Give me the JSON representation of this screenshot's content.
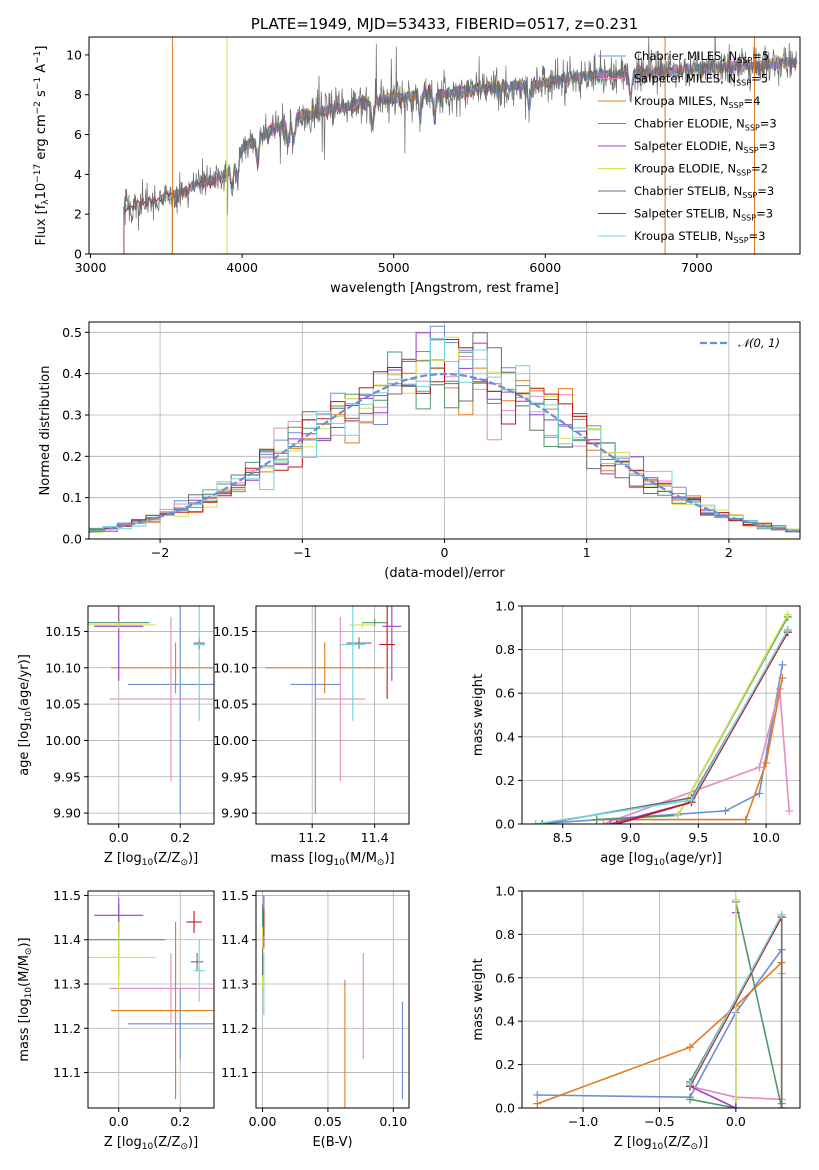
{
  "title": "PLATE=1949, MJD=53433, FIBERID=0517, z=0.231",
  "colors": {
    "chabrier_miles": "#6a8fd8",
    "salpeter_miles": "#e68bbf",
    "kroupa_miles": "#e07b20",
    "chabrier_elodie": "#4f9a6b",
    "salpeter_elodie": "#9b3fc9",
    "kroupa_elodie": "#d4e24a",
    "chabrier_stelib": "#6d6d6d",
    "salpeter_stelib": "#c01818",
    "kroupa_stelib": "#6fd3dd",
    "gauss": "#6a8fd8"
  },
  "chart_data": [
    {
      "id": "spectrum",
      "type": "line",
      "title": "PLATE=1949, MJD=53433, FIBERID=0517, z=0.231",
      "xlabel": "wavelength [Angstrom, rest frame]",
      "ylabel_main": "Flux [f",
      "ylabel_sub": "λ",
      "ylabel_rest": "10",
      "ylabel_exp1": "−17",
      "ylabel_mid": " erg cm",
      "ylabel_exp2": "−2",
      "ylabel_s": " s",
      "ylabel_exp3": "−1",
      "ylabel_end": " A",
      "ylabel_exp4": "−1",
      "ylabel_close": "]",
      "xlim": [
        2990,
        7680
      ],
      "ylim": [
        0,
        10.9
      ],
      "xticks": [
        3000,
        4000,
        5000,
        6000,
        7000
      ],
      "yticks": [
        0,
        2,
        4,
        6,
        8,
        10
      ],
      "grid": false,
      "legend_position": "top-right",
      "legend": [
        {
          "key": "chabrier_miles",
          "label": "Chabrier MILES, N",
          "sub": "SSP",
          "suffix": "=5"
        },
        {
          "key": "salpeter_miles",
          "label": "Salpeter MILES, N",
          "sub": "SSP",
          "suffix": "=5"
        },
        {
          "key": "kroupa_miles",
          "label": "Kroupa MILES, N",
          "sub": "SSP",
          "suffix": "=4"
        },
        {
          "key": "chabrier_elodie",
          "label": "Chabrier ELODIE, N",
          "sub": "SSP",
          "suffix": "=3"
        },
        {
          "key": "salpeter_elodie",
          "label": "Salpeter ELODIE, N",
          "sub": "SSP",
          "suffix": "=3"
        },
        {
          "key": "kroupa_elodie",
          "label": "Kroupa ELODIE, N",
          "sub": "SSP",
          "suffix": "=2"
        },
        {
          "key": "chabrier_stelib",
          "label": "Chabrier STELIB, N",
          "sub": "SSP",
          "suffix": "=3"
        },
        {
          "key": "salpeter_stelib",
          "label": "Salpeter STELIB, N",
          "sub": "SSP",
          "suffix": "=3"
        },
        {
          "key": "kroupa_stelib",
          "label": "Kroupa STELIB, N",
          "sub": "SSP",
          "suffix": "=3"
        }
      ],
      "continuum": {
        "x": [
          3220,
          3280,
          3400,
          3500,
          3600,
          3700,
          3800,
          3900,
          3950,
          4000,
          4100,
          4200,
          4300,
          4400,
          4500,
          4600,
          4700,
          4800,
          4900,
          5000,
          5200,
          5400,
          5600,
          5800,
          6000,
          6200,
          6400,
          6600,
          6800,
          7000,
          7200,
          7400,
          7660
        ],
        "y": [
          2.2,
          2.4,
          2.6,
          2.9,
          3.1,
          3.5,
          3.7,
          4.0,
          4.6,
          5.3,
          5.8,
          6.2,
          6.7,
          7.0,
          7.1,
          7.3,
          7.4,
          7.6,
          7.7,
          7.9,
          8.0,
          8.1,
          8.3,
          8.4,
          8.6,
          8.9,
          9.0,
          9.1,
          9.2,
          9.3,
          9.4,
          9.5,
          9.6
        ]
      },
      "model_start": {
        "chabrier_miles": 3540,
        "salpeter_miles": 3540,
        "kroupa_miles": 3540,
        "chabrier_elodie": 3900,
        "salpeter_elodie": 3900,
        "kroupa_elodie": 3900,
        "chabrier_stelib": 3220,
        "salpeter_stelib": 3220,
        "kroupa_stelib": 3220
      }
    },
    {
      "id": "residuals",
      "type": "step",
      "xlabel": "(data-model)/error",
      "ylabel": "Normed distribution",
      "xlim": [
        -2.5,
        2.5
      ],
      "ylim": [
        0,
        0.525
      ],
      "xticks": [
        -2,
        -1,
        0,
        1,
        2
      ],
      "yticks": [
        0.0,
        0.1,
        0.2,
        0.3,
        0.4,
        0.5
      ],
      "grid": true,
      "legend_position": "top-right",
      "gauss_label": "𝒩(0, 1)",
      "bin_width": 0.1
    },
    {
      "id": "age_vs_Z",
      "type": "scatter",
      "xlabel": "Z [log",
      "xlabel_sub": "10",
      "xlabel_rest": "(Z/Z",
      "xlabel_sub2": "⊙",
      "xlabel_end": ")]",
      "ylabel": "age  [log",
      "ylabel_sub": "10",
      "ylabel_rest": "(age/yr)]",
      "xlim": [
        -0.1,
        0.31
      ],
      "ylim": [
        9.885,
        10.185
      ],
      "xticks": [
        0.0,
        0.2
      ],
      "yticks": [
        9.9,
        9.95,
        10.0,
        10.05,
        10.1,
        10.15
      ],
      "points": [
        {
          "key": "chabrier_miles",
          "x": 0.2,
          "xerr": 0.17,
          "y": 10.077,
          "yerr": 0.178
        },
        {
          "key": "salpeter_miles",
          "x": 0.17,
          "xerr": 0.2,
          "y": 10.057,
          "yerr": 0.113
        },
        {
          "key": "kroupa_miles",
          "x": 0.185,
          "xerr": 0.21,
          "y": 10.1,
          "yerr": 0.035
        },
        {
          "key": "chabrier_elodie",
          "x": 0.0,
          "xerr": 0.1,
          "y": 10.162,
          "yerr": 0.005
        },
        {
          "key": "salpeter_elodie",
          "x": 0.0,
          "xerr": 0.08,
          "y": 10.157,
          "yerr": 0.075
        },
        {
          "key": "kroupa_elodie",
          "x": 0.0,
          "xerr": 0.12,
          "y": 10.159,
          "yerr": 0.005
        },
        {
          "key": "chabrier_stelib",
          "x": 0.262,
          "xerr": 0.018,
          "y": 10.134,
          "yerr": 0.008
        },
        {
          "key": "salpeter_stelib",
          "x": 0.262,
          "xerr": 0.018,
          "y": 10.132,
          "yerr": 0.006
        },
        {
          "key": "kroupa_stelib",
          "x": 0.262,
          "xerr": 0.018,
          "y": 10.132,
          "yerr": 0.105
        }
      ]
    },
    {
      "id": "age_vs_mass",
      "type": "scatter",
      "xlabel": "mass [log",
      "xlabel_sub": "10",
      "xlabel_rest": "(M/M",
      "xlabel_sub2": "⊙",
      "xlabel_end": ")]",
      "xlim": [
        11.02,
        11.51
      ],
      "ylim": [
        9.885,
        10.185
      ],
      "xticks": [
        11.2,
        11.4
      ],
      "yticks": [
        9.9,
        9.95,
        10.0,
        10.05,
        10.1,
        10.15
      ],
      "points": [
        {
          "key": "chabrier_miles",
          "x": 11.21,
          "xerr": 0.08,
          "y": 10.077,
          "yerr": 0.178
        },
        {
          "key": "salpeter_miles",
          "x": 11.29,
          "xerr": 0.08,
          "y": 10.057,
          "yerr": 0.113
        },
        {
          "key": "kroupa_miles",
          "x": 11.24,
          "xerr": 0.19,
          "y": 10.1,
          "yerr": 0.035
        },
        {
          "key": "chabrier_elodie",
          "x": 11.4,
          "xerr": 0.04,
          "y": 10.162,
          "yerr": 0.005
        },
        {
          "key": "salpeter_elodie",
          "x": 11.455,
          "xerr": 0.03,
          "y": 10.157,
          "yerr": 0.075
        },
        {
          "key": "kroupa_elodie",
          "x": 11.36,
          "xerr": 0.04,
          "y": 10.159,
          "yerr": 0.005
        },
        {
          "key": "chabrier_stelib",
          "x": 11.35,
          "xerr": 0.04,
          "y": 10.134,
          "yerr": 0.008
        },
        {
          "key": "salpeter_stelib",
          "x": 11.44,
          "xerr": 0.025,
          "y": 10.132,
          "yerr": 0.075
        },
        {
          "key": "kroupa_stelib",
          "x": 11.33,
          "xerr": 0.04,
          "y": 10.132,
          "yerr": 0.105
        }
      ]
    },
    {
      "id": "weight_vs_age",
      "type": "line",
      "xlabel": "age  [log",
      "xlabel_sub": "10",
      "xlabel_rest": "(age/yr)]",
      "ylabel": "mass weight",
      "xlim": [
        8.2,
        10.25
      ],
      "ylim": [
        0,
        1.0
      ],
      "xticks": [
        8.5,
        9.0,
        9.5,
        10.0
      ],
      "yticks": [
        0.0,
        0.2,
        0.4,
        0.6,
        0.8,
        1.0
      ],
      "grid": true,
      "series": [
        {
          "key": "chabrier_miles",
          "x": [
            8.3,
            9.7,
            9.95,
            10.12
          ],
          "y": [
            0.0,
            0.06,
            0.14,
            0.73
          ]
        },
        {
          "key": "salpeter_miles",
          "x": [
            8.8,
            9.95,
            10.1,
            10.17
          ],
          "y": [
            0.0,
            0.26,
            0.62,
            0.06
          ]
        },
        {
          "key": "kroupa_miles",
          "x": [
            8.75,
            9.85,
            10.0,
            10.12
          ],
          "y": [
            0.02,
            0.02,
            0.28,
            0.67
          ]
        },
        {
          "key": "chabrier_elodie",
          "x": [
            8.75,
            9.35,
            10.16
          ],
          "y": [
            0.02,
            0.04,
            0.95
          ]
        },
        {
          "key": "salpeter_elodie",
          "x": [
            8.85,
            9.45,
            10.16
          ],
          "y": [
            0.0,
            0.1,
            0.89
          ]
        },
        {
          "key": "kroupa_elodie",
          "x": [
            9.35,
            10.16
          ],
          "y": [
            0.04,
            0.96
          ]
        },
        {
          "key": "chabrier_stelib",
          "x": [
            8.35,
            9.45,
            10.16
          ],
          "y": [
            0.0,
            0.12,
            0.88
          ]
        },
        {
          "key": "salpeter_stelib",
          "x": [
            8.9,
            9.45,
            10.16
          ],
          "y": [
            0.0,
            0.1,
            0.88
          ]
        },
        {
          "key": "kroupa_stelib",
          "x": [
            8.3,
            9.45,
            10.16
          ],
          "y": [
            0.0,
            0.11,
            0.89
          ]
        }
      ]
    },
    {
      "id": "mass_vs_Z",
      "type": "scatter",
      "xlabel": "Z [log",
      "xlabel_sub": "10",
      "xlabel_rest": "(Z/Z",
      "xlabel_sub2": "⊙",
      "xlabel_end": ")]",
      "ylabel": "mass [log",
      "ylabel_sub": "10",
      "ylabel_rest": "(M/M",
      "ylabel_sub2": "⊙",
      "ylabel_end": ")]",
      "xlim": [
        -0.1,
        0.31
      ],
      "ylim": [
        11.02,
        11.51
      ],
      "xticks": [
        0.0,
        0.2
      ],
      "yticks": [
        11.1,
        11.2,
        11.3,
        11.4,
        11.5
      ],
      "points": [
        {
          "key": "chabrier_miles",
          "x": 0.2,
          "xerr": 0.17,
          "y": 11.21,
          "yerr": 0.08
        },
        {
          "key": "salpeter_miles",
          "x": 0.17,
          "xerr": 0.2,
          "y": 11.29,
          "yerr": 0.08
        },
        {
          "key": "kroupa_miles",
          "x": 0.185,
          "xerr": 0.21,
          "y": 11.24,
          "yerr": 0.2
        },
        {
          "key": "chabrier_elodie",
          "x": 0.0,
          "xerr": 0.15,
          "y": 11.4,
          "yerr": 0.08
        },
        {
          "key": "salpeter_elodie",
          "x": 0.0,
          "xerr": 0.08,
          "y": 11.455,
          "yerr": 0.04
        },
        {
          "key": "kroupa_elodie",
          "x": 0.0,
          "xerr": 0.12,
          "y": 11.36,
          "yerr": 0.08
        },
        {
          "key": "chabrier_stelib",
          "x": 0.255,
          "xerr": 0.02,
          "y": 11.35,
          "yerr": 0.02
        },
        {
          "key": "salpeter_stelib",
          "x": 0.245,
          "xerr": 0.025,
          "y": 11.44,
          "yerr": 0.025
        },
        {
          "key": "kroupa_stelib",
          "x": 0.262,
          "xerr": 0.018,
          "y": 11.33,
          "yerr": 0.07
        }
      ]
    },
    {
      "id": "mass_vs_ebv",
      "type": "scatter",
      "xlabel": "E(B-V)",
      "xlim": [
        -0.005,
        0.112
      ],
      "ylim": [
        11.02,
        11.51
      ],
      "xticks": [
        0.0,
        0.05,
        0.1
      ],
      "yticks": [
        11.1,
        11.2,
        11.3,
        11.4,
        11.5
      ],
      "points": [
        {
          "key": "chabrier_miles",
          "x": 0.107,
          "xerr": 0.0,
          "y": 11.15,
          "yerr": 0.11
        },
        {
          "key": "salpeter_miles",
          "x": 0.077,
          "xerr": 0.0,
          "y": 11.25,
          "yerr": 0.12
        },
        {
          "key": "kroupa_miles",
          "x": 0.063,
          "xerr": 0.0,
          "y": 11.16,
          "yerr": 0.15
        },
        {
          "key": "chabrier_elodie",
          "x": 0.0,
          "xerr": 0.0,
          "y": 11.4,
          "yerr": 0.08
        },
        {
          "key": "salpeter_elodie",
          "x": 0.001,
          "xerr": 0.0,
          "y": 11.44,
          "yerr": 0.06
        },
        {
          "key": "kroupa_elodie",
          "x": 0.0,
          "xerr": 0.0,
          "y": 11.36,
          "yerr": 0.07
        },
        {
          "key": "chabrier_stelib",
          "x": 0.0,
          "xerr": 0.0,
          "y": 11.35,
          "yerr": 0.03
        },
        {
          "key": "salpeter_stelib",
          "x": 0.001,
          "xerr": 0.0,
          "y": 11.44,
          "yerr": 0.03
        },
        {
          "key": "kroupa_stelib",
          "x": 0.001,
          "xerr": 0.0,
          "y": 11.3,
          "yerr": 0.07
        }
      ]
    },
    {
      "id": "weight_vs_Z",
      "type": "line",
      "xlabel": "Z [log",
      "xlabel_sub": "10",
      "xlabel_rest": "(Z/Z",
      "xlabel_sub2": "⊙",
      "xlabel_end": ")]",
      "ylabel": "mass weight",
      "xlim": [
        -1.4,
        0.42
      ],
      "ylim": [
        0,
        1.0
      ],
      "xticks": [
        -1.0,
        -0.5,
        0.0
      ],
      "yticks": [
        0.0,
        0.2,
        0.4,
        0.6,
        0.8,
        1.0
      ],
      "grid": true,
      "series": [
        {
          "key": "chabrier_miles",
          "x": [
            -1.3,
            -0.3,
            0.0,
            0.3
          ],
          "y": [
            0.06,
            0.05,
            0.44,
            0.73
          ]
        },
        {
          "key": "salpeter_miles",
          "x": [
            -0.3,
            0.0,
            0.3,
            0.3
          ],
          "y": [
            0.1,
            0.05,
            0.04,
            0.62
          ]
        },
        {
          "key": "kroupa_miles",
          "x": [
            -1.3,
            -0.3,
            0.0,
            0.3,
            0.3
          ],
          "y": [
            0.02,
            0.28,
            0.47,
            0.67,
            0.02
          ]
        },
        {
          "key": "chabrier_elodie",
          "x": [
            -0.3,
            0.0,
            0.0,
            0.3
          ],
          "y": [
            0.04,
            0.0,
            0.95,
            0.0
          ]
        },
        {
          "key": "salpeter_elodie",
          "x": [
            -0.3,
            0.0,
            0.0
          ],
          "y": [
            0.1,
            0.0,
            0.9
          ]
        },
        {
          "key": "kroupa_elodie",
          "x": [
            0.0,
            0.0
          ],
          "y": [
            0.04,
            0.96
          ]
        },
        {
          "key": "chabrier_stelib",
          "x": [
            -0.3,
            0.3,
            0.3
          ],
          "y": [
            0.12,
            0.88,
            0.0
          ]
        },
        {
          "key": "salpeter_stelib",
          "x": [
            -0.3,
            0.3
          ],
          "y": [
            0.1,
            0.88
          ]
        },
        {
          "key": "kroupa_stelib",
          "x": [
            -0.3,
            0.3
          ],
          "y": [
            0.11,
            0.89
          ]
        }
      ]
    }
  ]
}
